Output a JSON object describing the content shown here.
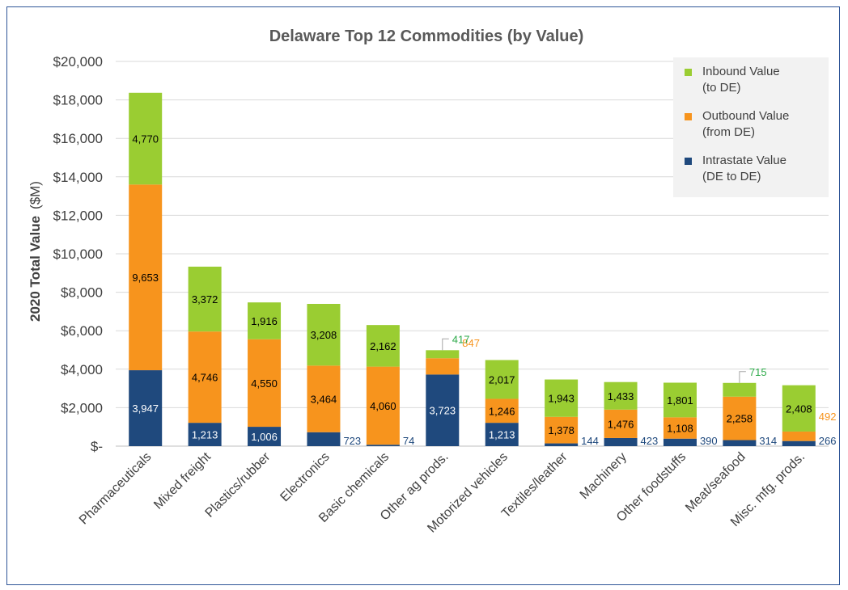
{
  "chart_data": {
    "type": "bar",
    "stacked": true,
    "title": "Delaware Top 12 Commodities  (by Value)",
    "ylabel_bold": "2020 Total Value",
    "ylabel_unit": "($M)",
    "xlabel": "",
    "ylim": [
      0,
      20000
    ],
    "ytick_values": [
      0,
      2000,
      4000,
      6000,
      8000,
      10000,
      12000,
      14000,
      16000,
      18000,
      20000
    ],
    "ytick_labels": [
      "$-",
      "$2,000",
      "$4,000",
      "$6,000",
      "$8,000",
      "$10,000",
      "$12,000",
      "$14,000",
      "$16,000",
      "$18,000",
      "$20,000"
    ],
    "grid": true,
    "legend_position": "top-right",
    "categories": [
      "Pharmaceuticals",
      "Mixed freight",
      "Plastics/rubber",
      "Electronics",
      "Basic chemicals",
      "Other ag prods.",
      "Motorized vehicles",
      "Textiles/leather",
      "Machinery",
      "Other foodstuffs",
      "Meat/seafood",
      "Misc. mfg. prods."
    ],
    "series": [
      {
        "key": "intrastate",
        "name_line1": "Intrastate Value",
        "name_line2": "(DE to DE)",
        "color": "#1f497d",
        "label_color": "#ffffff",
        "outside_label_color": "#1f497d",
        "values": [
          3947,
          1213,
          1006,
          723,
          74,
          3723,
          1213,
          144,
          423,
          390,
          314,
          266
        ],
        "labels": [
          "3,947",
          "1,213",
          "1,006",
          "723",
          "74",
          "3,723",
          "1,213",
          "144",
          "423",
          "390",
          "314",
          "266"
        ]
      },
      {
        "key": "outbound",
        "name_line1": "Outbound Value",
        "name_line2": "(from DE)",
        "color": "#f7941d",
        "label_color": "#000000",
        "outside_label_color": "#f7941d",
        "values": [
          9653,
          4746,
          4550,
          3464,
          4060,
          847,
          1246,
          1378,
          1476,
          1108,
          2258,
          492
        ],
        "labels": [
          "9,653",
          "4,746",
          "4,550",
          "3,464",
          "4,060",
          "847",
          "1,246",
          "1,378",
          "1,476",
          "1,108",
          "2,258",
          "492"
        ]
      },
      {
        "key": "inbound",
        "name_line1": "Inbound Value",
        "name_line2": "(to DE)",
        "color": "#9acd32",
        "label_color": "#000000",
        "outside_label_color": "#2eaa4a",
        "values": [
          4770,
          3372,
          1916,
          3208,
          2162,
          417,
          2017,
          1943,
          1433,
          1801,
          715,
          2408
        ],
        "labels": [
          "4,770",
          "3,372",
          "1,916",
          "3,208",
          "2,162",
          "417",
          "2,017",
          "1,943",
          "1,433",
          "1,801",
          "715",
          "2,408"
        ]
      }
    ]
  }
}
